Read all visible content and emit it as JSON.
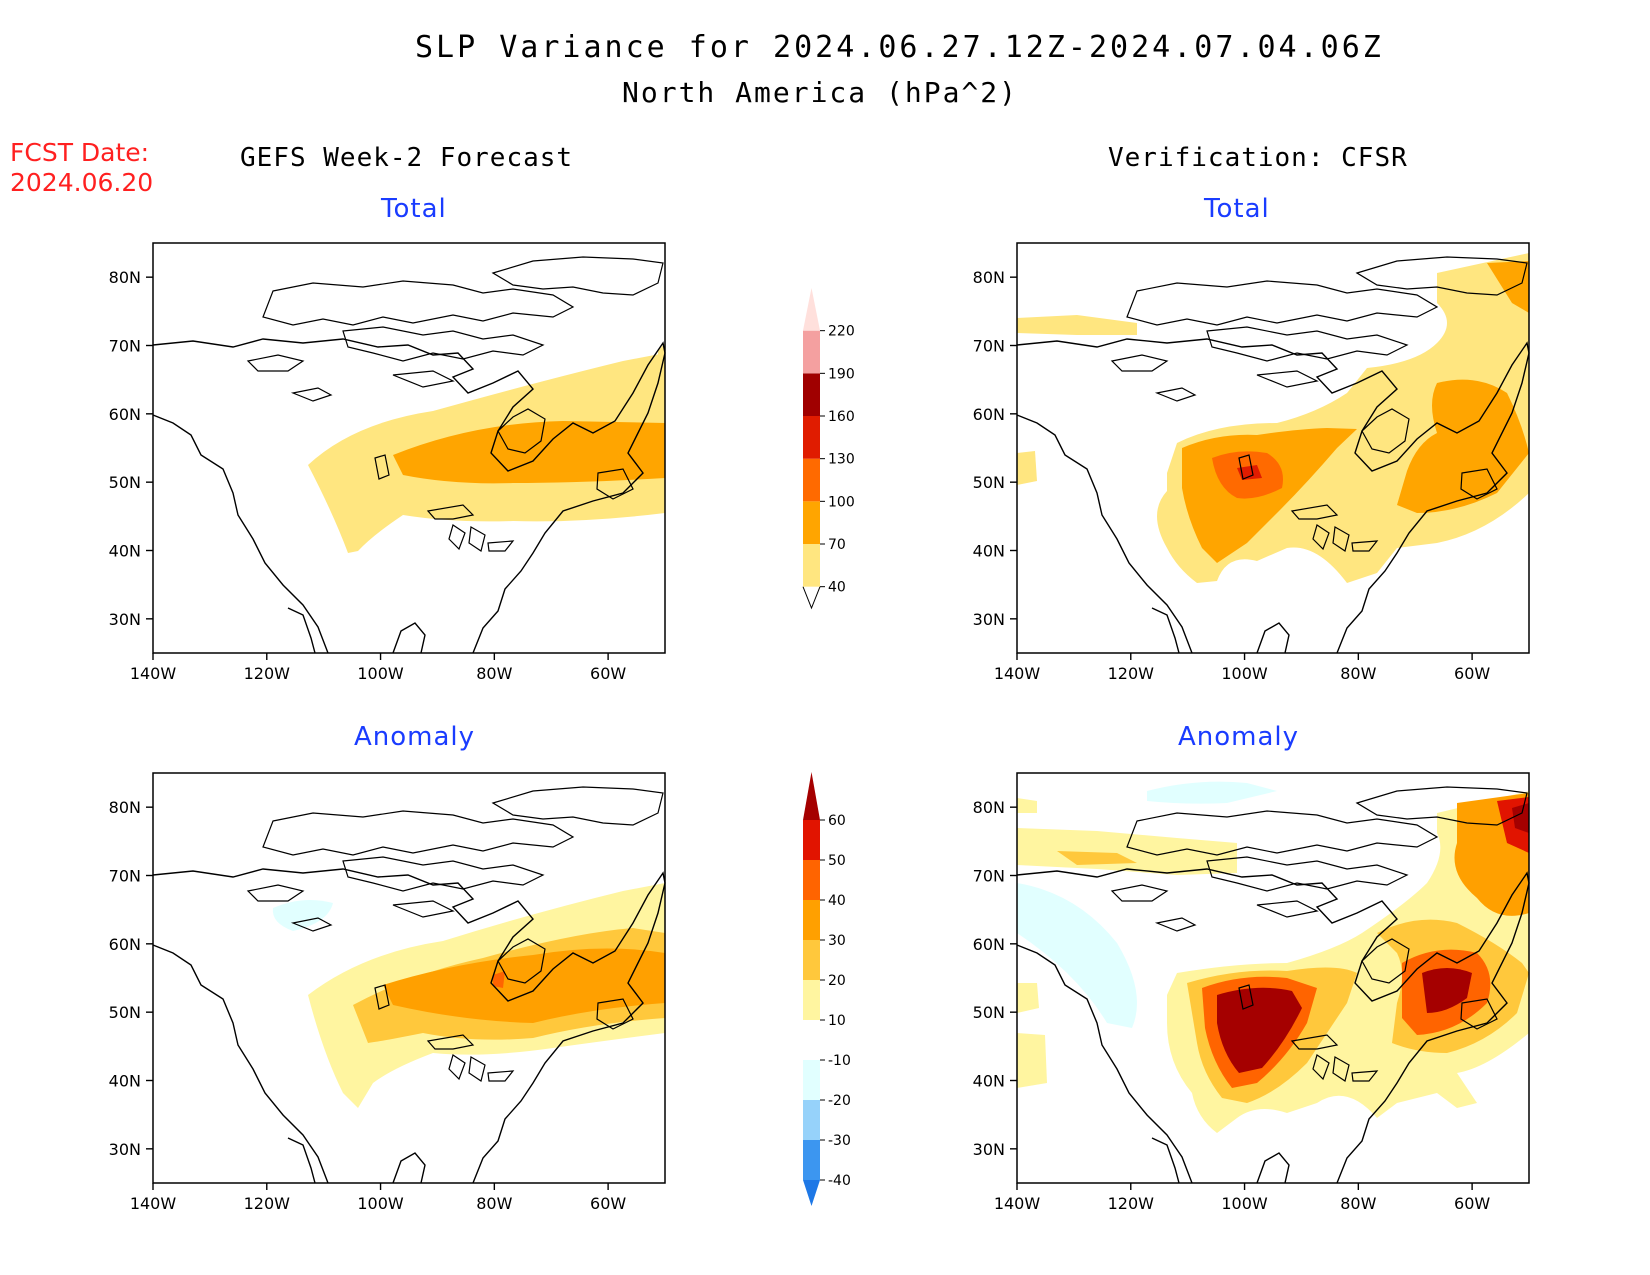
{
  "header": {
    "title": "SLP Variance for 2024.06.27.12Z-2024.07.04.06Z",
    "subtitle": "North America (hPa^2)"
  },
  "fcst": {
    "label": "FCST Date:",
    "date": "2024.06.20"
  },
  "columns": {
    "left": "GEFS Week-2 Forecast",
    "right": "Verification: CFSR"
  },
  "panels": {
    "total_label": "Total",
    "anomaly_label": "Anomaly"
  },
  "axes": {
    "lat_ticks": [
      "80N",
      "70N",
      "60N",
      "50N",
      "40N",
      "30N"
    ],
    "lon_ticks": [
      "140W",
      "120W",
      "100W",
      "80W",
      "60W"
    ],
    "lat_range": [
      25,
      85
    ],
    "lon_range": [
      -140,
      -50
    ]
  },
  "legend_total": {
    "levels": [
      "40",
      "70",
      "100",
      "130",
      "160",
      "190",
      "220"
    ],
    "colors": [
      "#ffe680",
      "#ffa500",
      "#ff6a00",
      "#e01c00",
      "#a00000",
      "#f4a0a0",
      "#ffe0dc"
    ]
  },
  "legend_anomaly": {
    "levels": [
      "-40",
      "-30",
      "-20",
      "-10",
      "10",
      "20",
      "30",
      "40",
      "50",
      "60"
    ],
    "colors": [
      "#1e78e6",
      "#3c96f0",
      "#96d2fa",
      "#e1ffff",
      "#ffffff",
      "#fff5a0",
      "#ffc83c",
      "#ffa000",
      "#ff6400",
      "#e11400",
      "#a50000"
    ]
  }
}
